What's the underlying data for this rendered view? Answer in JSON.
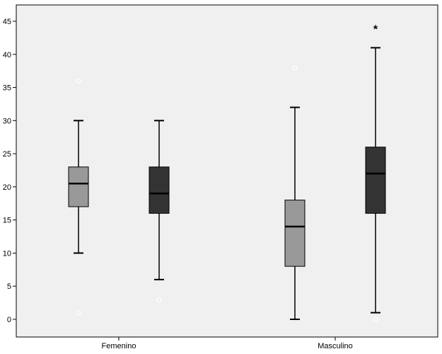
{
  "chart_data": {
    "type": "boxplot",
    "categories": [
      "Femenino",
      "Masculino"
    ],
    "ylim": [
      -2,
      47
    ],
    "yticks": [
      0,
      5,
      10,
      15,
      20,
      25,
      30,
      35,
      40,
      45
    ],
    "grid": false,
    "legend": "none",
    "colors": {
      "plot_bg": "#f0f0f0",
      "light_box": "#999999",
      "dark_box": "#333333",
      "outlier": "#ffffff",
      "extreme": "#000000"
    },
    "series": [
      {
        "color": "#999999",
        "boxes": [
          {
            "category": "Femenino",
            "min": 10,
            "q1": 17,
            "median": 20.5,
            "q3": 23,
            "max": 30,
            "outliers": [
              36,
              1
            ],
            "extremes": []
          },
          {
            "category": "Masculino",
            "min": 0,
            "q1": 8,
            "median": 14,
            "q3": 18,
            "max": 32,
            "outliers": [
              38
            ],
            "extremes": []
          }
        ]
      },
      {
        "color": "#333333",
        "boxes": [
          {
            "category": "Femenino",
            "min": 6,
            "q1": 16,
            "median": 19,
            "q3": 23,
            "max": 30,
            "outliers": [
              3
            ],
            "extremes": []
          },
          {
            "category": "Masculino",
            "min": 1,
            "q1": 16,
            "median": 22,
            "q3": 26,
            "max": 41,
            "outliers": [
              0
            ],
            "extremes": [
              44
            ]
          }
        ]
      }
    ]
  }
}
